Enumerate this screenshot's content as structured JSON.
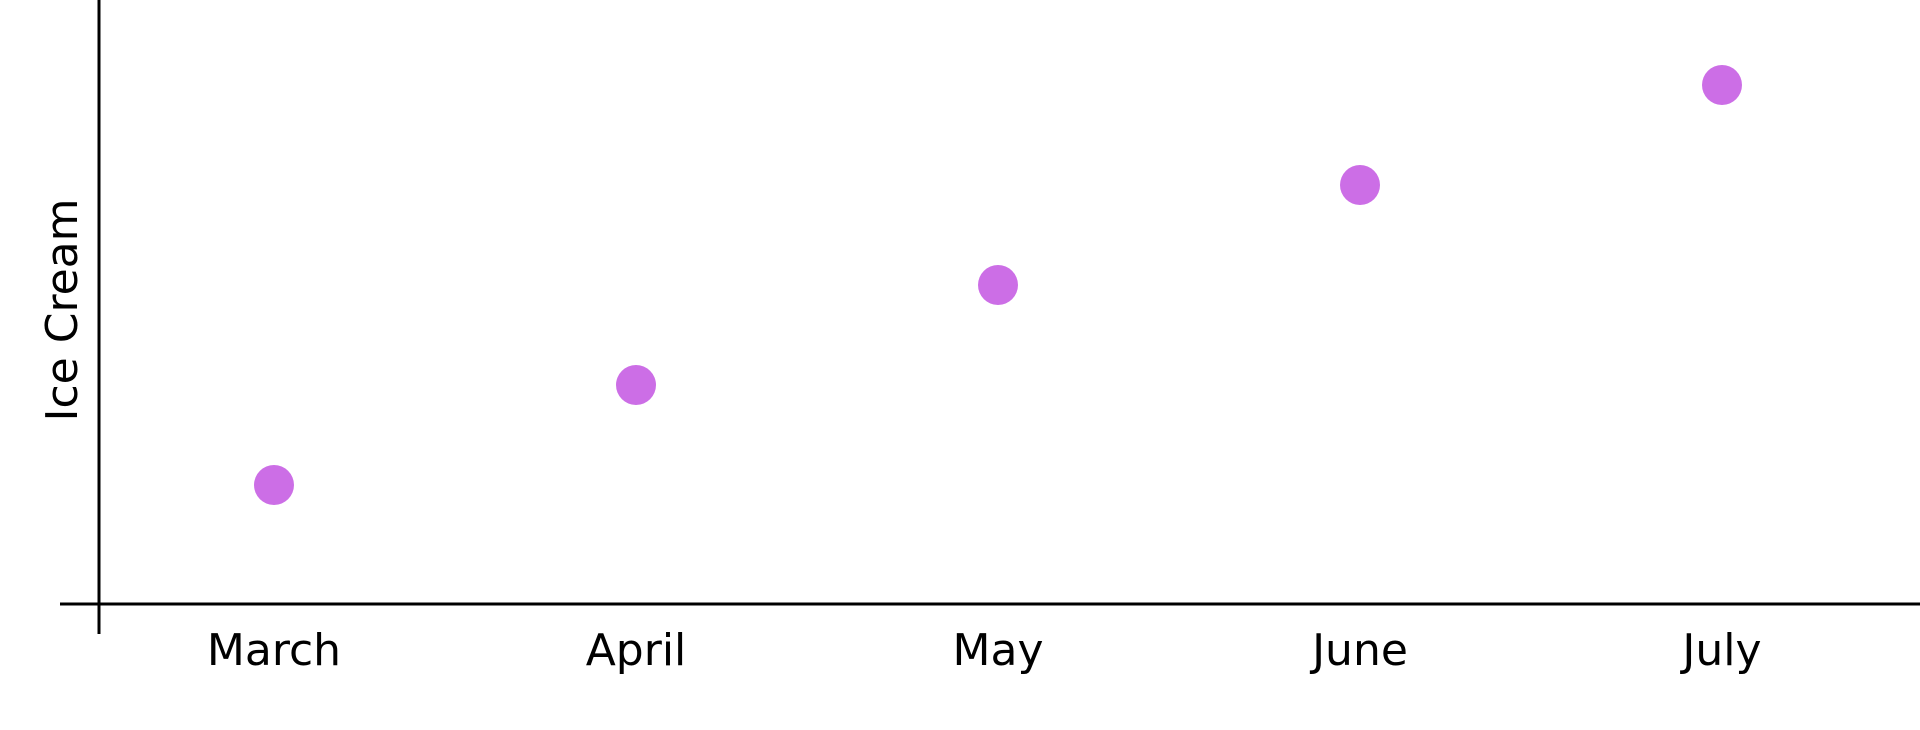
{
  "chart_data": {
    "type": "scatter",
    "title": "",
    "xlabel": "",
    "ylabel": "Ice Cream",
    "categories": [
      "March",
      "April",
      "May",
      "June",
      "July"
    ],
    "values": [
      1,
      2,
      3,
      4,
      5
    ],
    "ylim": [
      0,
      6
    ],
    "grid": false,
    "point_color": "#cc6ee6"
  }
}
